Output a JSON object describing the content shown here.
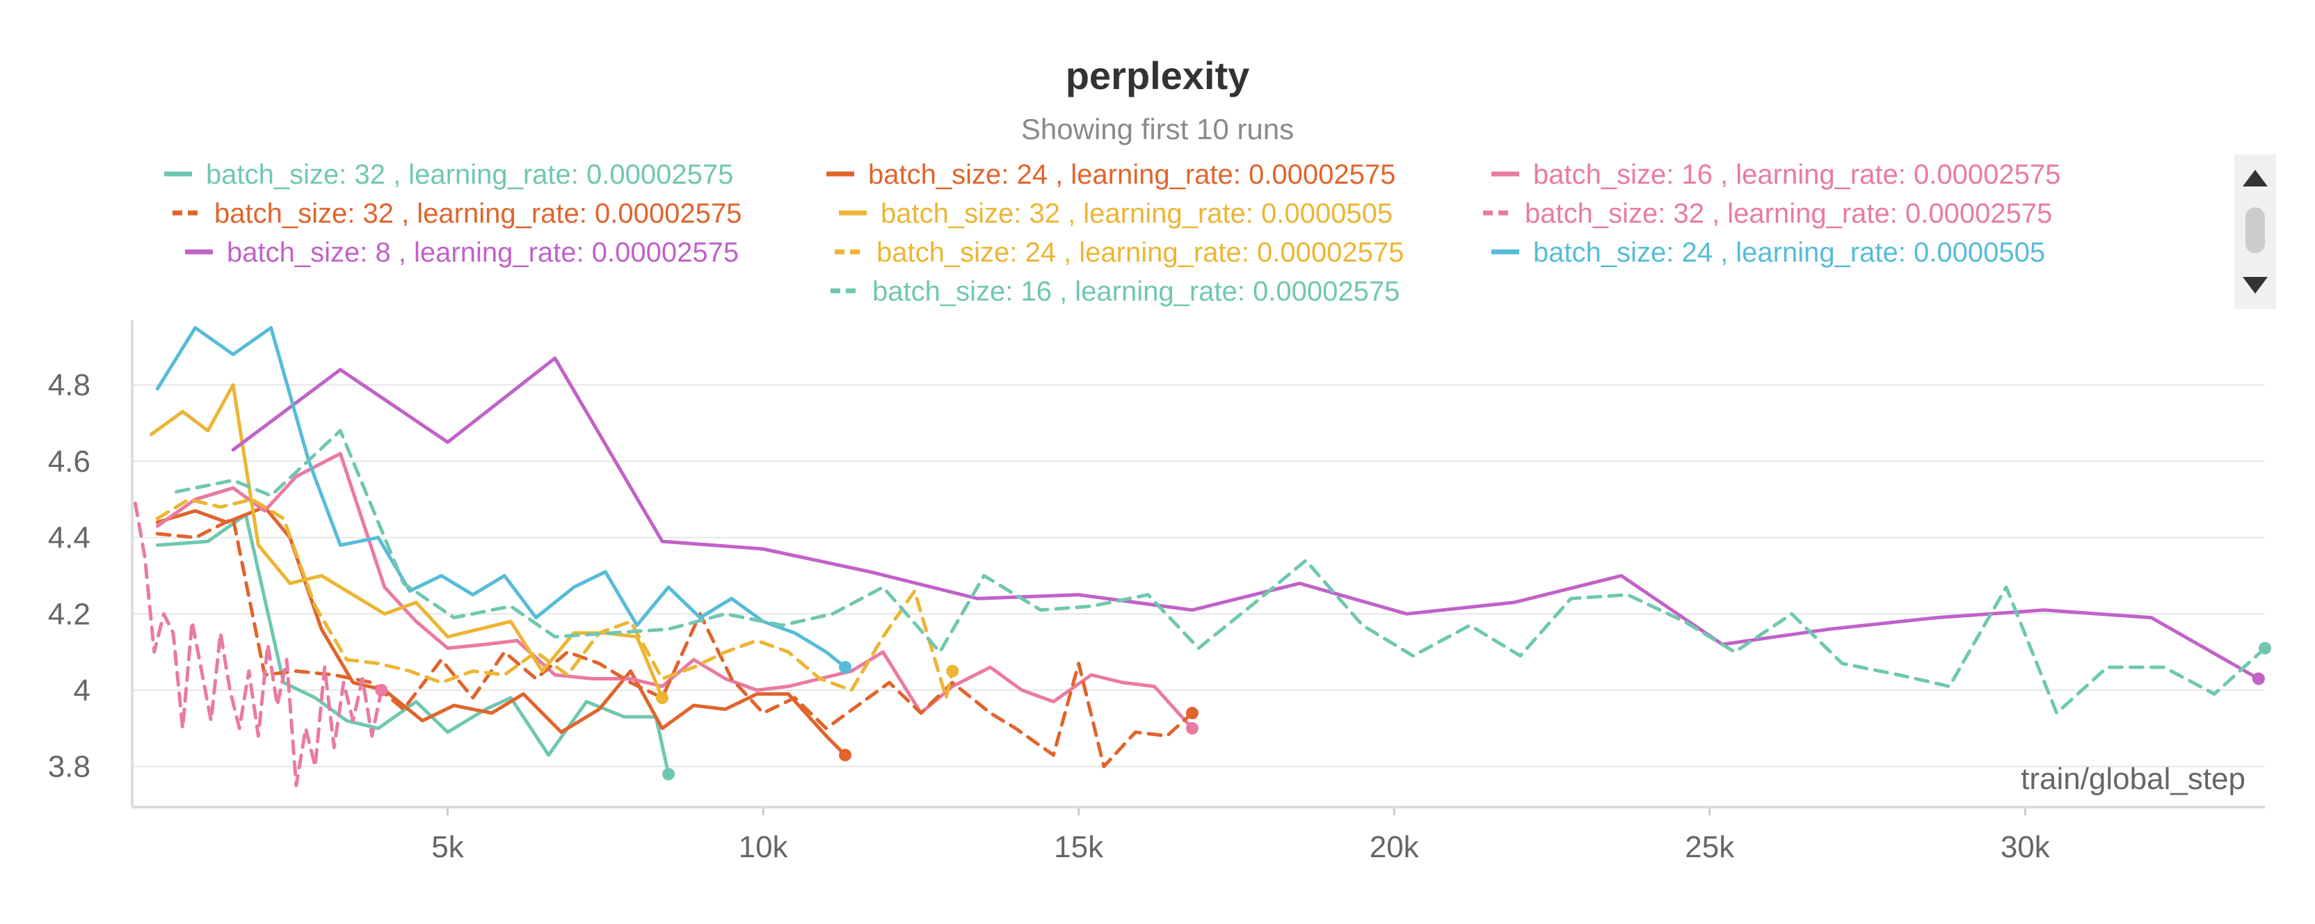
{
  "chart_data": {
    "type": "line",
    "title": "perplexity",
    "subtitle": "Showing first 10 runs",
    "xlabel": "train/global_step",
    "ylabel": "",
    "xlim": [
      0,
      33800
    ],
    "ylim": [
      3.73,
      4.97
    ],
    "x_ticks": [
      5000,
      10000,
      15000,
      20000,
      25000,
      30000
    ],
    "x_tick_labels": [
      "5k",
      "10k",
      "15k",
      "20k",
      "25k",
      "30k"
    ],
    "y_ticks": [
      3.8,
      4.0,
      4.2,
      4.4,
      4.6,
      4.8
    ],
    "y_tick_labels": [
      "3.8",
      "4",
      "4.2",
      "4.4",
      "4.6",
      "4.8"
    ],
    "grid": true,
    "legend_position": "top",
    "series": [
      {
        "name": "batch_size: 32 , learning_rate: 0.00002575",
        "color": "#6fc7b1",
        "dashed": false,
        "x": [
          400,
          1200,
          1800,
          2400,
          2900,
          3400,
          3900,
          4500,
          5000,
          5600,
          6000,
          6600,
          7200,
          7800,
          8300,
          8500
        ],
        "y": [
          4.38,
          4.39,
          4.46,
          4.02,
          3.98,
          3.92,
          3.9,
          3.97,
          3.89,
          3.95,
          3.98,
          3.83,
          3.97,
          3.93,
          3.93,
          3.78
        ]
      },
      {
        "name": "batch_size: 24 , learning_rate: 0.00002575",
        "color": "#e0642c",
        "dashed": false,
        "x": [
          400,
          1000,
          1500,
          2100,
          2500,
          3000,
          3500,
          4000,
          4600,
          5100,
          5700,
          6200,
          6800,
          7400,
          7900,
          8400,
          8900,
          9400,
          9900,
          10400,
          11000,
          11300
        ],
        "y": [
          4.44,
          4.47,
          4.44,
          4.48,
          4.4,
          4.16,
          4.02,
          4.0,
          3.92,
          3.96,
          3.94,
          3.99,
          3.89,
          3.95,
          4.05,
          3.9,
          3.96,
          3.95,
          3.99,
          3.99,
          3.88,
          3.83
        ]
      },
      {
        "name": "batch_size: 16 , learning_rate: 0.00002575",
        "color": "#e97aa3",
        "dashed": false,
        "x": [
          400,
          1000,
          1600,
          2100,
          2600,
          3300,
          4000,
          4500,
          5000,
          5600,
          6100,
          6700,
          7300,
          7900,
          8400,
          8900,
          9400,
          9900,
          10400,
          10900,
          11400,
          11900,
          12500,
          13000,
          13600,
          14100,
          14600,
          15200,
          15700,
          16200,
          16800
        ],
        "y": [
          4.43,
          4.5,
          4.53,
          4.47,
          4.56,
          4.62,
          4.27,
          4.18,
          4.11,
          4.12,
          4.13,
          4.04,
          4.03,
          4.03,
          4.01,
          4.08,
          4.03,
          4.0,
          4.01,
          4.03,
          4.05,
          4.1,
          3.94,
          4.01,
          4.06,
          4.0,
          3.97,
          4.04,
          4.02,
          4.01,
          3.9
        ]
      },
      {
        "name": "batch_size: 32 , learning_rate: 0.00002575",
        "color": "#e0642c",
        "dashed": true,
        "x": [
          400,
          1000,
          1600,
          2100,
          2600,
          3200,
          3800,
          4300,
          4900,
          5400,
          5900,
          6400,
          6900,
          7400,
          7900,
          8400,
          9000,
          9500,
          10000,
          10500,
          11000,
          11500,
          12000,
          12500,
          13000,
          13600,
          14000,
          14600,
          15000,
          15400,
          15900,
          16400,
          16800
        ],
        "y": [
          4.41,
          4.4,
          4.45,
          4.04,
          4.05,
          4.04,
          4.02,
          3.95,
          4.08,
          3.98,
          4.1,
          4.03,
          4.1,
          4.07,
          4.02,
          3.98,
          4.2,
          4.03,
          3.94,
          3.98,
          3.9,
          3.96,
          4.02,
          3.94,
          4.02,
          3.94,
          3.9,
          3.83,
          4.07,
          3.8,
          3.89,
          3.88,
          3.94
        ]
      },
      {
        "name": "batch_size: 32 , learning_rate: 0.0000505",
        "color": "#ecb533",
        "dashed": false,
        "x": [
          300,
          800,
          1200,
          1600,
          2000,
          2500,
          3000,
          3500,
          4000,
          4500,
          5000,
          5500,
          6000,
          6500,
          7000,
          7500,
          8000,
          8400
        ],
        "y": [
          4.67,
          4.73,
          4.68,
          4.8,
          4.38,
          4.28,
          4.3,
          4.25,
          4.2,
          4.23,
          4.14,
          4.16,
          4.18,
          4.05,
          4.15,
          4.15,
          4.14,
          3.98
        ]
      },
      {
        "name": "batch_size: 32 , learning_rate: 0.00002575",
        "color": "#e97aa3",
        "dashed": true,
        "x": [
          50,
          200,
          350,
          500,
          650,
          800,
          950,
          1100,
          1250,
          1400,
          1550,
          1700,
          1850,
          2000,
          2150,
          2300,
          2450,
          2600,
          2750,
          2900,
          3050,
          3200,
          3350,
          3500,
          3650,
          3800,
          3950
        ],
        "y": [
          4.49,
          4.35,
          4.1,
          4.2,
          4.15,
          3.9,
          4.18,
          4.05,
          3.92,
          4.15,
          4.0,
          3.9,
          4.05,
          3.88,
          4.12,
          3.96,
          4.08,
          3.75,
          3.9,
          3.8,
          4.06,
          3.85,
          4.02,
          3.92,
          4.03,
          3.88,
          4.0
        ]
      },
      {
        "name": "batch_size: 8 , learning_rate: 0.00002575",
        "color": "#c062c8",
        "dashed": false,
        "x": [
          1600,
          3300,
          5000,
          6700,
          8400,
          10000,
          11700,
          13400,
          15000,
          16800,
          18500,
          20200,
          21900,
          23600,
          25200,
          26900,
          28600,
          30300,
          32000,
          33700
        ],
        "y": [
          4.63,
          4.84,
          4.65,
          4.87,
          4.39,
          4.37,
          4.31,
          4.24,
          4.25,
          4.21,
          4.28,
          4.2,
          4.23,
          4.3,
          4.12,
          4.16,
          4.19,
          4.21,
          4.19,
          4.03
        ]
      },
      {
        "name": "batch_size: 24 , learning_rate: 0.00002575",
        "color": "#ecb533",
        "dashed": true,
        "x": [
          400,
          900,
          1400,
          1900,
          2400,
          2900,
          3400,
          3900,
          4400,
          4900,
          5400,
          5900,
          6400,
          6900,
          7400,
          7900,
          8400,
          8900,
          9400,
          9900,
          10400,
          10900,
          11400,
          11900,
          12400,
          12900,
          13000
        ],
        "y": [
          4.45,
          4.5,
          4.48,
          4.5,
          4.45,
          4.22,
          4.08,
          4.07,
          4.05,
          4.02,
          4.05,
          4.04,
          4.1,
          4.04,
          4.15,
          4.18,
          4.03,
          4.06,
          4.1,
          4.13,
          4.1,
          4.03,
          4.0,
          4.14,
          4.26,
          3.98,
          4.05
        ]
      },
      {
        "name": "batch_size: 24 , learning_rate: 0.0000505",
        "color": "#56bcd8",
        "dashed": false,
        "x": [
          400,
          1000,
          1600,
          2200,
          2800,
          3300,
          3900,
          4400,
          4900,
          5400,
          5900,
          6400,
          7000,
          7500,
          8000,
          8500,
          9000,
          9500,
          10000,
          10500,
          11000,
          11300
        ],
        "y": [
          4.79,
          4.95,
          4.88,
          4.95,
          4.6,
          4.38,
          4.4,
          4.26,
          4.3,
          4.25,
          4.3,
          4.19,
          4.27,
          4.31,
          4.17,
          4.27,
          4.19,
          4.24,
          4.18,
          4.15,
          4.1,
          4.06
        ]
      },
      {
        "name": "batch_size: 16 , learning_rate: 0.00002575",
        "color": "#6fc7b1",
        "dashed": true,
        "x": [
          700,
          1600,
          2200,
          3300,
          4300,
          5100,
          6000,
          6700,
          7600,
          8500,
          9400,
          10300,
          11100,
          11900,
          12800,
          13500,
          14400,
          15200,
          16100,
          16900,
          17800,
          18600,
          19500,
          20300,
          21200,
          22000,
          22800,
          23700,
          24600,
          25400,
          26300,
          27100,
          28000,
          28800,
          29700,
          30500,
          31300,
          32200,
          33000,
          33800
        ],
        "y": [
          4.52,
          4.55,
          4.51,
          4.68,
          4.28,
          4.19,
          4.22,
          4.14,
          4.15,
          4.16,
          4.2,
          4.17,
          4.2,
          4.27,
          4.1,
          4.3,
          4.21,
          4.22,
          4.25,
          4.11,
          4.23,
          4.34,
          4.17,
          4.09,
          4.17,
          4.09,
          4.24,
          4.25,
          4.18,
          4.1,
          4.2,
          4.07,
          4.04,
          4.01,
          4.27,
          3.94,
          4.06,
          4.06,
          3.99,
          4.11
        ]
      }
    ]
  },
  "legend_rows": [
    [
      0,
      1,
      2
    ],
    [
      3,
      4,
      5
    ],
    [
      6,
      7,
      8
    ],
    [
      9
    ]
  ]
}
